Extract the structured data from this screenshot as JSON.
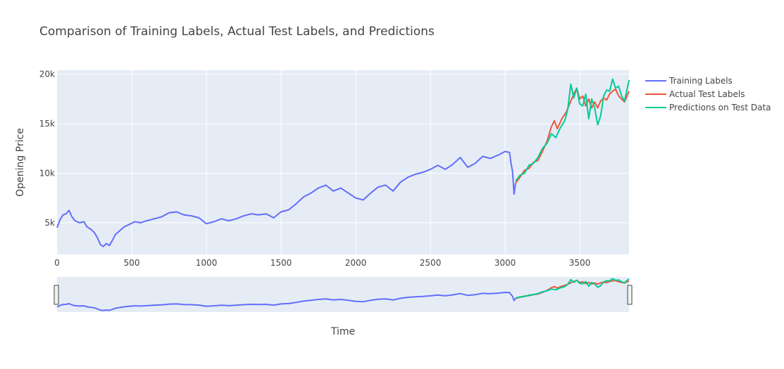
{
  "chart_data": {
    "type": "line",
    "title": "Comparison of Training Labels, Actual Test Labels, and Predictions",
    "xlabel": "Time",
    "ylabel": "Opening Price",
    "xlim": [
      0,
      3830
    ],
    "ylim": [
      1800,
      20400
    ],
    "x_ticks": [
      0,
      500,
      1000,
      1500,
      2000,
      2500,
      3000,
      3500
    ],
    "x_tick_labels": [
      "0",
      "500",
      "1000",
      "1500",
      "2000",
      "2500",
      "3000",
      "3500"
    ],
    "y_ticks": [
      5000,
      10000,
      15000,
      20000
    ],
    "y_tick_labels": [
      "5k",
      "10k",
      "15k",
      "20k"
    ],
    "grid": true,
    "legend_position": "right",
    "range_slider": true,
    "series": [
      {
        "name": "Training Labels",
        "color": "#636efa",
        "points": [
          [
            0,
            4500
          ],
          [
            20,
            5300
          ],
          [
            40,
            5800
          ],
          [
            60,
            5900
          ],
          [
            80,
            6250
          ],
          [
            100,
            5600
          ],
          [
            120,
            5200
          ],
          [
            150,
            5000
          ],
          [
            180,
            5100
          ],
          [
            200,
            4600
          ],
          [
            230,
            4300
          ],
          [
            250,
            4000
          ],
          [
            270,
            3500
          ],
          [
            290,
            2800
          ],
          [
            310,
            2600
          ],
          [
            330,
            2900
          ],
          [
            350,
            2700
          ],
          [
            370,
            3200
          ],
          [
            390,
            3800
          ],
          [
            420,
            4200
          ],
          [
            450,
            4600
          ],
          [
            480,
            4800
          ],
          [
            520,
            5100
          ],
          [
            560,
            5000
          ],
          [
            600,
            5200
          ],
          [
            650,
            5400
          ],
          [
            700,
            5600
          ],
          [
            750,
            6000
          ],
          [
            800,
            6100
          ],
          [
            850,
            5800
          ],
          [
            900,
            5700
          ],
          [
            950,
            5500
          ],
          [
            1000,
            4900
          ],
          [
            1050,
            5100
          ],
          [
            1100,
            5400
          ],
          [
            1150,
            5200
          ],
          [
            1200,
            5400
          ],
          [
            1250,
            5700
          ],
          [
            1300,
            5900
          ],
          [
            1350,
            5800
          ],
          [
            1400,
            5900
          ],
          [
            1450,
            5500
          ],
          [
            1500,
            6100
          ],
          [
            1550,
            6300
          ],
          [
            1600,
            6900
          ],
          [
            1650,
            7600
          ],
          [
            1700,
            8000
          ],
          [
            1750,
            8500
          ],
          [
            1800,
            8800
          ],
          [
            1850,
            8200
          ],
          [
            1900,
            8500
          ],
          [
            1950,
            8000
          ],
          [
            2000,
            7500
          ],
          [
            2050,
            7300
          ],
          [
            2100,
            8000
          ],
          [
            2150,
            8600
          ],
          [
            2200,
            8800
          ],
          [
            2250,
            8200
          ],
          [
            2300,
            9100
          ],
          [
            2350,
            9600
          ],
          [
            2400,
            9900
          ],
          [
            2450,
            10100
          ],
          [
            2500,
            10400
          ],
          [
            2550,
            10800
          ],
          [
            2600,
            10400
          ],
          [
            2650,
            10900
          ],
          [
            2700,
            11600
          ],
          [
            2750,
            10600
          ],
          [
            2800,
            11000
          ],
          [
            2850,
            11700
          ],
          [
            2900,
            11500
          ],
          [
            2950,
            11800
          ],
          [
            3000,
            12200
          ],
          [
            3030,
            12100
          ],
          [
            3040,
            11000
          ],
          [
            3050,
            10200
          ],
          [
            3060,
            7900
          ],
          [
            3070,
            9000
          ]
        ]
      },
      {
        "name": "Actual Test Labels",
        "color": "#ef553b",
        "points": [
          [
            3070,
            9000
          ],
          [
            3100,
            9600
          ],
          [
            3130,
            10300
          ],
          [
            3160,
            10500
          ],
          [
            3190,
            11100
          ],
          [
            3220,
            11300
          ],
          [
            3250,
            12200
          ],
          [
            3280,
            13200
          ],
          [
            3310,
            14700
          ],
          [
            3330,
            15300
          ],
          [
            3350,
            14500
          ],
          [
            3380,
            15500
          ],
          [
            3410,
            16200
          ],
          [
            3440,
            17300
          ],
          [
            3460,
            18000
          ],
          [
            3480,
            18600
          ],
          [
            3500,
            17500
          ],
          [
            3520,
            17800
          ],
          [
            3540,
            16800
          ],
          [
            3560,
            17500
          ],
          [
            3580,
            16600
          ],
          [
            3600,
            17200
          ],
          [
            3620,
            16600
          ],
          [
            3640,
            17300
          ],
          [
            3660,
            17600
          ],
          [
            3680,
            17400
          ],
          [
            3700,
            18000
          ],
          [
            3720,
            18300
          ],
          [
            3740,
            18500
          ],
          [
            3760,
            17800
          ],
          [
            3780,
            17500
          ],
          [
            3800,
            17200
          ],
          [
            3830,
            18300
          ]
        ]
      },
      {
        "name": "Predictions on Test Data",
        "color": "#00cc96",
        "points": [
          [
            3070,
            9200
          ],
          [
            3100,
            9800
          ],
          [
            3130,
            10000
          ],
          [
            3160,
            10800
          ],
          [
            3190,
            11000
          ],
          [
            3220,
            11600
          ],
          [
            3250,
            12500
          ],
          [
            3280,
            13000
          ],
          [
            3310,
            14000
          ],
          [
            3340,
            13600
          ],
          [
            3370,
            14600
          ],
          [
            3400,
            15300
          ],
          [
            3420,
            16500
          ],
          [
            3440,
            19000
          ],
          [
            3460,
            17600
          ],
          [
            3480,
            18600
          ],
          [
            3500,
            17000
          ],
          [
            3520,
            16800
          ],
          [
            3540,
            18000
          ],
          [
            3560,
            15500
          ],
          [
            3580,
            17500
          ],
          [
            3600,
            16600
          ],
          [
            3620,
            14900
          ],
          [
            3640,
            15800
          ],
          [
            3660,
            17800
          ],
          [
            3680,
            18400
          ],
          [
            3700,
            18300
          ],
          [
            3720,
            19500
          ],
          [
            3740,
            18600
          ],
          [
            3760,
            18800
          ],
          [
            3780,
            17800
          ],
          [
            3800,
            17300
          ],
          [
            3830,
            19400
          ]
        ]
      }
    ]
  }
}
